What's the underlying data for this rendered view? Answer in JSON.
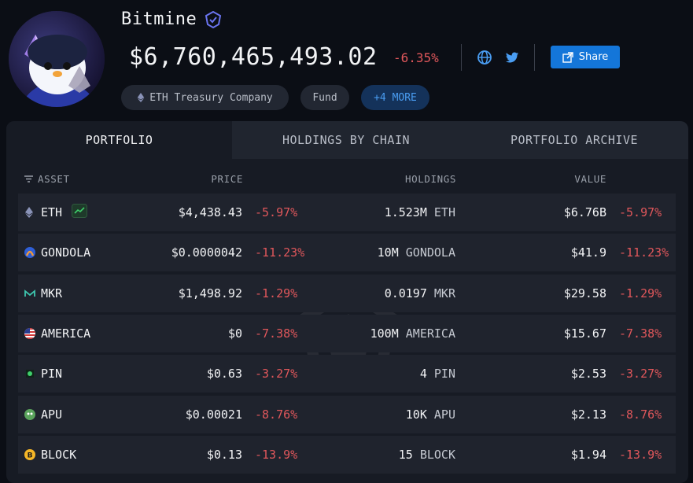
{
  "entity": {
    "name": "Bitmine",
    "total_value": "$6,760,465,493.02",
    "total_change": "-6.35%",
    "share_label": "Share",
    "tags": [
      "ETH Treasury Company",
      "Fund",
      "+4 MORE"
    ]
  },
  "tabs": [
    "PORTFOLIO",
    "HOLDINGS BY CHAIN",
    "PORTFOLIO ARCHIVE"
  ],
  "table": {
    "headers": {
      "asset": "ASSET",
      "price": "PRICE",
      "holdings": "HOLDINGS",
      "value": "VALUE"
    },
    "rows": [
      {
        "asset": "ETH",
        "icon": "eth-icon",
        "price": "$4,438.43",
        "price_change": "-5.97%",
        "holdings_amount": "1.523M",
        "holdings_symbol": "ETH",
        "value": "$6.76B",
        "value_change": "-5.97%"
      },
      {
        "asset": "GONDOLA",
        "icon": "gondola-icon",
        "price": "$0.0000042",
        "price_change": "-11.23%",
        "holdings_amount": "10M",
        "holdings_symbol": "GONDOLA",
        "value": "$41.9",
        "value_change": "-11.23%"
      },
      {
        "asset": "MKR",
        "icon": "mkr-icon",
        "price": "$1,498.92",
        "price_change": "-1.29%",
        "holdings_amount": "0.0197",
        "holdings_symbol": "MKR",
        "value": "$29.58",
        "value_change": "-1.29%"
      },
      {
        "asset": "AMERICA",
        "icon": "us-flag-icon",
        "price": "$0",
        "price_change": "-7.38%",
        "holdings_amount": "100M",
        "holdings_symbol": "AMERICA",
        "value": "$15.67",
        "value_change": "-7.38%"
      },
      {
        "asset": "PIN",
        "icon": "pin-icon",
        "price": "$0.63",
        "price_change": "-3.27%",
        "holdings_amount": "4",
        "holdings_symbol": "PIN",
        "value": "$2.53",
        "value_change": "-3.27%"
      },
      {
        "asset": "APU",
        "icon": "apu-icon",
        "price": "$0.00021",
        "price_change": "-8.76%",
        "holdings_amount": "10K",
        "holdings_symbol": "APU",
        "value": "$2.13",
        "value_change": "-8.76%"
      },
      {
        "asset": "BLOCK",
        "icon": "block-icon",
        "price": "$0.13",
        "price_change": "-13.9%",
        "holdings_amount": "15",
        "holdings_symbol": "BLOCK",
        "value": "$1.94",
        "value_change": "-13.9%"
      }
    ]
  },
  "colors": {
    "negative": "#e0575b",
    "accent": "#1476d9",
    "background": "#0b0e15",
    "panel": "#171b24",
    "row": "#1f232d"
  }
}
